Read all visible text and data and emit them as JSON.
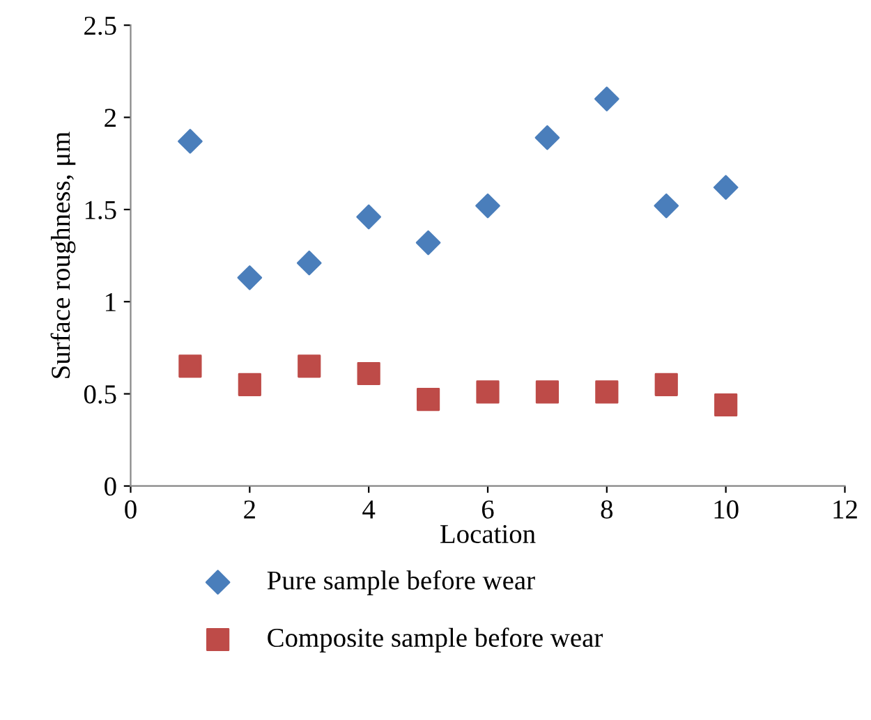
{
  "chart_data": {
    "type": "scatter",
    "xlabel": "Location",
    "ylabel": "Surface roughness, μm",
    "x": [
      1,
      2,
      3,
      4,
      5,
      6,
      7,
      8,
      9,
      10
    ],
    "series": [
      {
        "name": "Pure sample before wear",
        "color": "#4a7ebb",
        "marker": "diamond",
        "values": [
          1.87,
          1.13,
          1.21,
          1.46,
          1.32,
          1.52,
          1.89,
          2.1,
          1.52,
          1.62
        ]
      },
      {
        "name": "Composite sample before wear",
        "color": "#be4b48",
        "marker": "square",
        "values": [
          0.65,
          0.55,
          0.65,
          0.61,
          0.47,
          0.51,
          0.51,
          0.51,
          0.55,
          0.44
        ]
      }
    ],
    "xlim": [
      0,
      12
    ],
    "xticks": [
      0,
      2,
      4,
      6,
      8,
      10,
      12
    ],
    "ylim": [
      0,
      2.5
    ],
    "yticks": [
      0,
      0.5,
      1,
      1.5,
      2,
      2.5
    ],
    "grid": false,
    "legend": "bottom"
  }
}
